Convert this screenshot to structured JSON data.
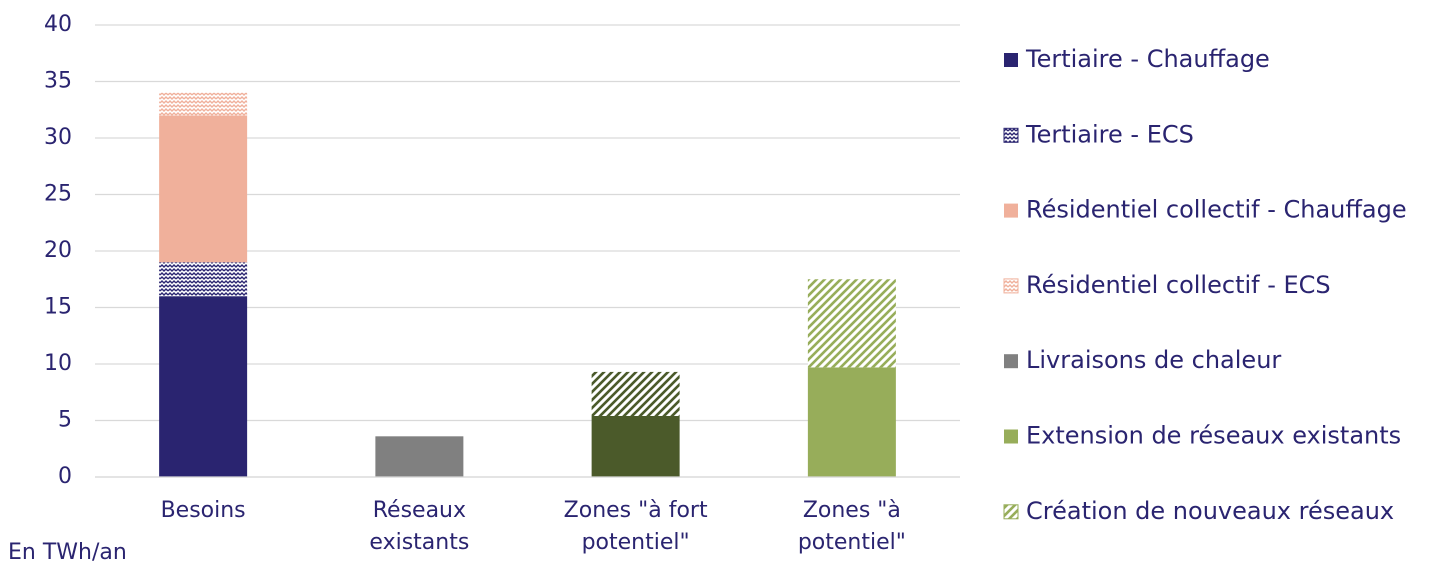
{
  "chart_data": {
    "type": "stacked_bar",
    "footnote": "En TWh/an",
    "categories": [
      "Besoins",
      "Réseaux existants",
      "Zones \"à fort potentiel\"",
      "Zones \"à potentiel\""
    ],
    "series": [
      {
        "name": "Tertiaire - Chauffage",
        "color": "#2a2470",
        "values": [
          16,
          null,
          null,
          null
        ]
      },
      {
        "name": "Tertiaire - ECS",
        "color": "#2a2470",
        "pattern": "wave",
        "values": [
          3,
          null,
          null,
          null
        ]
      },
      {
        "name": "Résidentiel collectif - Chauffage",
        "color": "#f0b09b",
        "values": [
          13,
          null,
          null,
          null
        ]
      },
      {
        "name": "Résidentiel collectif - ECS",
        "color": "#f0b09b",
        "pattern": "wave",
        "values": [
          2,
          null,
          null,
          null
        ]
      },
      {
        "name": "Livraisons de chaleur",
        "color": "#808080",
        "values": [
          null,
          3.6,
          null,
          null
        ]
      },
      {
        "name": "Extension de réseaux existants",
        "color": "#97ad5a",
        "point_colors": [
          null,
          null,
          "#4b5a2a",
          "#97ad5a"
        ],
        "values": [
          null,
          null,
          5.4,
          9.7
        ]
      },
      {
        "name": "Création de nouveaux réseaux",
        "color": "#97ad5a",
        "pattern": "hatch",
        "point_colors": [
          null,
          null,
          "#4b5a2a",
          "#97ad5a"
        ],
        "values": [
          null,
          null,
          3.9,
          7.8
        ]
      }
    ],
    "ylim": [
      0,
      40
    ],
    "yticks": [
      0,
      5,
      10,
      15,
      20,
      25,
      30,
      35,
      40
    ],
    "grid": true,
    "legend": "right"
  }
}
